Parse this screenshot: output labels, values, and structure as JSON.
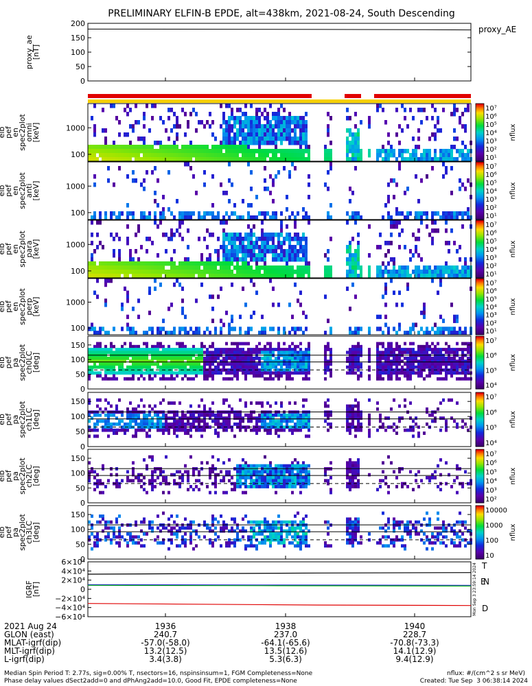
{
  "title": "PRELIMINARY ELFIN-B EPDE, alt=438km, 2021-08-24, South Descending",
  "colors": {
    "red_bar": "#e00000",
    "yellow_bar": "#f5d000",
    "igrf_black": "#000000",
    "igrf_blue": "#1010d0",
    "igrf_green": "#10c010",
    "igrf_red": "#e00000"
  },
  "chart_data": [
    {
      "type": "line",
      "name": "proxy_ae",
      "ylabel": "proxy_ae [nT]",
      "ylim": [
        0,
        200
      ],
      "yticks": [
        "200",
        "150",
        "100",
        "50",
        "0"
      ],
      "legend": "proxy_AE",
      "series": [
        {
          "name": "proxy_AE",
          "x": [
            0,
            0.6,
            0.88,
            1.0
          ],
          "y": [
            180,
            179,
            178,
            177
          ]
        }
      ]
    },
    {
      "type": "heatmap",
      "name": "elb_pef_en_spec2plot_omni",
      "ylabel": "elb pef en spec2plot omni [keV]",
      "yscale": "log",
      "yticks": [
        "1000",
        "100"
      ],
      "colorbar": {
        "label": "nflux",
        "ticks": [
          "10⁷",
          "10⁶",
          "10⁵",
          "10⁴",
          "10³",
          "10²",
          "10¹"
        ]
      }
    },
    {
      "type": "heatmap",
      "name": "elb_pef_en_spec2plot_anti",
      "ylabel": "elb pef en spec2plot anti [keV]",
      "yscale": "log",
      "yticks": [
        "1000",
        "100"
      ],
      "colorbar": {
        "label": "nflux",
        "ticks": [
          "10⁷",
          "10⁶",
          "10⁵",
          "10⁴",
          "10³",
          "10²",
          "10¹"
        ]
      }
    },
    {
      "type": "heatmap",
      "name": "elb_pef_en_spec2plot_para",
      "ylabel": "elb pef en spec2plot para [keV]",
      "yscale": "log",
      "yticks": [
        "1000",
        "100"
      ],
      "colorbar": {
        "label": "nflux",
        "ticks": [
          "10⁷",
          "10⁶",
          "10⁵",
          "10⁴",
          "10³",
          "10²",
          "10¹"
        ]
      }
    },
    {
      "type": "heatmap",
      "name": "elb_pef_en_spec2plot_perp",
      "ylabel": "elb pef en spec2plot perp [keV]",
      "yscale": "log",
      "yticks": [
        "1000",
        "100"
      ],
      "colorbar": {
        "label": "nflux",
        "ticks": [
          "10⁷",
          "10⁶",
          "10⁵",
          "10⁴",
          "10³",
          "10²",
          "10¹"
        ]
      }
    },
    {
      "type": "heatmap",
      "name": "elb_pef_pa_spec2plot_ch0LC",
      "ylabel": "elb pef pa spec2plot ch0LC [deg]",
      "ylim": [
        0,
        180
      ],
      "yticks": [
        "150",
        "100",
        "50",
        "0"
      ],
      "colorbar": {
        "label": "nflux",
        "ticks": [
          "10⁷",
          "10⁶",
          "10⁵",
          "10⁴"
        ]
      }
    },
    {
      "type": "heatmap",
      "name": "elb_pef_pa_spec2plot_ch1LC",
      "ylabel": "elb pef pa spec2plot ch1LC [deg]",
      "ylim": [
        0,
        180
      ],
      "yticks": [
        "150",
        "100",
        "50",
        "0"
      ],
      "colorbar": {
        "label": "nflux",
        "ticks": [
          "10⁷",
          "10⁶",
          "10⁵",
          "10⁴"
        ]
      }
    },
    {
      "type": "heatmap",
      "name": "elb_pef_pa_spec2plot_ch2LC",
      "ylabel": "elb pef pa spec2plot ch2LC [deg]",
      "ylim": [
        0,
        180
      ],
      "yticks": [
        "150",
        "100",
        "50",
        "0"
      ],
      "colorbar": {
        "label": "nflux",
        "ticks": [
          "10⁷",
          "10⁶",
          "10⁵",
          "10⁴",
          "10³",
          "10²"
        ]
      }
    },
    {
      "type": "heatmap",
      "name": "elb_pef_pa_spec2plot_ch3LC",
      "ylabel": "elb pef pa spec2plot ch3LC [deg]",
      "ylim": [
        0,
        180
      ],
      "yticks": [
        "150",
        "100",
        "50",
        "0"
      ],
      "colorbar": {
        "label": "nflux",
        "ticks": [
          "10000",
          "1000",
          "100",
          "10"
        ]
      }
    },
    {
      "type": "line",
      "name": "igrf",
      "ylabel": "IGRF [nT]",
      "ylim": [
        -60000,
        60000
      ],
      "yticks": [
        "6×10⁴",
        "4×10⁴",
        "2×10⁴",
        "0",
        "−2×10⁴",
        "−4×10⁴",
        "−6×10⁴"
      ],
      "series": [
        {
          "name": "T",
          "x": [
            0,
            0.6,
            1.0
          ],
          "y": [
            33000,
            35500,
            36500
          ]
        },
        {
          "name": "E",
          "x": [
            0,
            0.5,
            1.0
          ],
          "y": [
            10000,
            9200,
            8500
          ]
        },
        {
          "name": "N",
          "x": [
            0,
            0.5,
            1.0
          ],
          "y": [
            8500,
            7700,
            7000
          ]
        },
        {
          "name": "D",
          "x": [
            0,
            0.6,
            1.0
          ],
          "y": [
            -31000,
            -34500,
            -35500
          ]
        }
      ],
      "legend": [
        "T",
        "E",
        "N",
        "D"
      ],
      "side_text": "Mon Sep  3 23:59:14 2024"
    }
  ],
  "xaxis": {
    "date": "2021 Aug 24",
    "ticks": [
      "1936",
      "1938",
      "1940"
    ],
    "rows": [
      {
        "label": "GLON (east)",
        "vals": [
          "240.7",
          "237.0",
          "228.7"
        ]
      },
      {
        "label": "MLAT-igrf(dip)",
        "vals": [
          "-57.0(-58.0)",
          "-64.1(-65.6)",
          "-70.8(-73.3)"
        ]
      },
      {
        "label": "MLT-igrf(dip)",
        "vals": [
          "13.2(12.5)",
          "13.5(12.6)",
          "14.1(12.9)"
        ]
      },
      {
        "label": "L-igrf(dip)",
        "vals": [
          "3.4(3.8)",
          "5.3(6.3)",
          "9.4(12.9)"
        ]
      }
    ]
  },
  "footer": {
    "line1": "Median Spin Period T: 2.77s, sig=0.00% T, nsectors=16, nspinsinsum=1, FGM Completeness=None",
    "line2": "Phase delay values dSect2add=0 and dPhAng2add=10.0, Good Fit, EPDE completeness=None",
    "units": "nflux: #/(cm^2 s sr MeV)",
    "created": "Created: Tue Sep  3 06:38:14 2024"
  }
}
